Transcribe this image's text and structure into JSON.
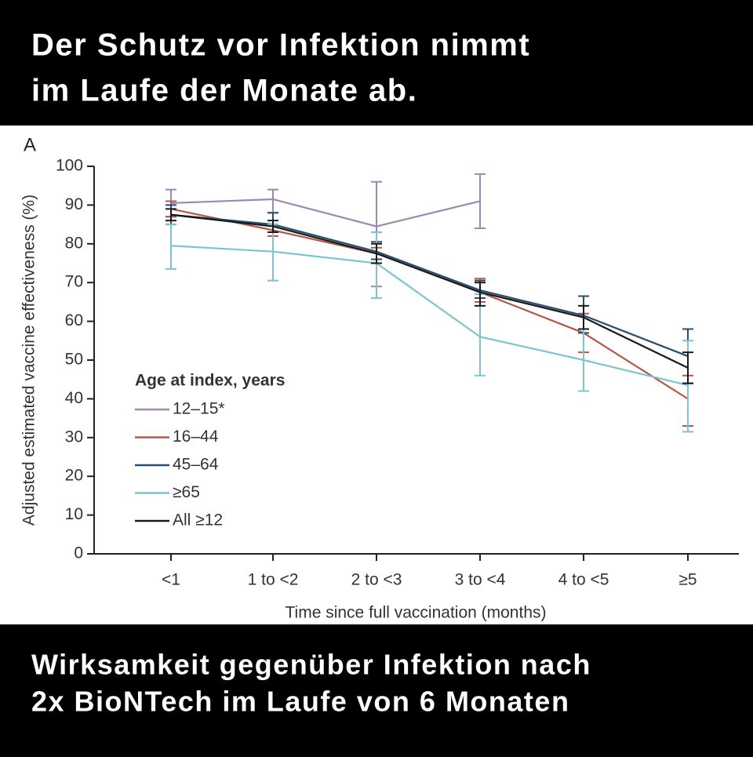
{
  "header": {
    "lines": [
      "Der Schutz vor Infektion nimmt",
      "im Laufe der Monate ab."
    ]
  },
  "footer": {
    "lines": [
      "Wirksamkeit gegenüber Infektion nach",
      "2x BioNTech im Laufe von 6 Monaten"
    ]
  },
  "chart_data": {
    "type": "line",
    "panel_label": "A",
    "x_label": "Time since full vaccination (months)",
    "y_label": "Adjusted estimated vaccine effectiveness (%)",
    "categories": [
      "<1",
      "1 to <2",
      "2 to <3",
      "3 to <4",
      "4 to <5",
      "≥5"
    ],
    "ylim": [
      0,
      100
    ],
    "yticks": [
      0,
      10,
      20,
      30,
      40,
      50,
      60,
      70,
      80,
      90,
      100
    ],
    "grid": false,
    "legend_title": "Age at index, years",
    "legend_position": "lower left",
    "series": [
      {
        "name": "12–15*",
        "color": "#9d87b3",
        "values": [
          90.5,
          91.5,
          84.5,
          91,
          null,
          null
        ],
        "lower": [
          87,
          88,
          69,
          84,
          null,
          null
        ],
        "upper": [
          94,
          94,
          96,
          98,
          null,
          null
        ]
      },
      {
        "name": "16–44",
        "color": "#b5584a",
        "values": [
          89,
          83.5,
          77.5,
          67.5,
          57,
          40
        ],
        "lower": [
          87,
          82,
          76,
          65,
          52,
          33
        ],
        "upper": [
          91,
          85,
          79,
          71,
          62,
          46
        ]
      },
      {
        "name": "45–64",
        "color": "#274e6e",
        "values": [
          87.5,
          85,
          78,
          68,
          61.5,
          51
        ],
        "lower": [
          85,
          83,
          76,
          66,
          57,
          44
        ],
        "upper": [
          90,
          88,
          80.5,
          70.5,
          66.5,
          58
        ]
      },
      {
        "name": "≥65",
        "color": "#7cc4cf",
        "values": [
          79.5,
          78,
          75,
          56,
          50,
          43.5
        ],
        "lower": [
          73.5,
          70.5,
          66,
          46,
          42,
          31.5
        ],
        "upper": [
          85,
          85,
          83,
          67,
          58,
          55
        ]
      },
      {
        "name": "All ≥12",
        "color": "#1a1a1a",
        "values": [
          87.5,
          84.5,
          77.5,
          67.5,
          61,
          48
        ],
        "lower": [
          86,
          83,
          75,
          64,
          58,
          44
        ],
        "upper": [
          89,
          86,
          80,
          70,
          64,
          52
        ]
      }
    ]
  }
}
